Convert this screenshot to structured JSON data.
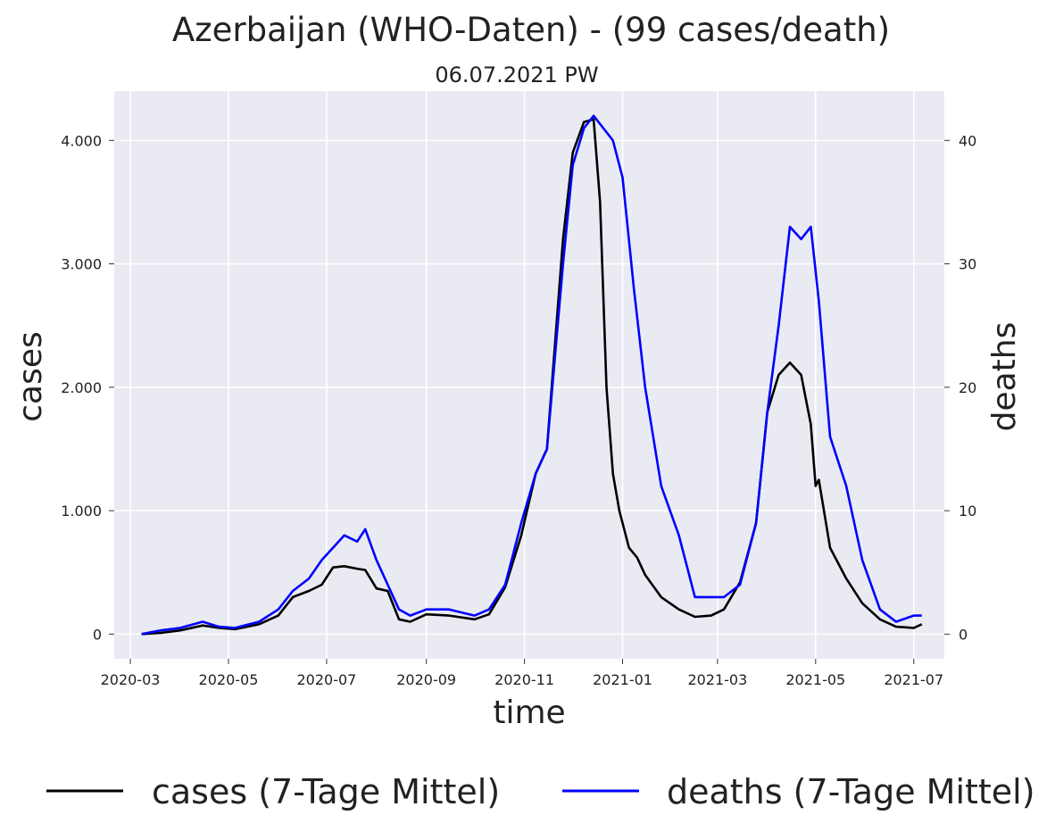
{
  "chart_data": {
    "type": "line",
    "title": "Azerbaijan (WHO-Daten) - (99 cases/death)",
    "subtitle": "06.07.2021 PW",
    "xlabel": "time",
    "ylabel": "cases",
    "y2label": "deaths",
    "x_ticks": [
      "2020-03",
      "2020-05",
      "2020-07",
      "2020-09",
      "2020-11",
      "2021-01",
      "2021-03",
      "2021-05",
      "2021-07"
    ],
    "x_range": [
      "2020-02-20",
      "2021-07-20"
    ],
    "y_ticks": [
      0,
      1000,
      2000,
      3000,
      4000
    ],
    "y_tick_labels": [
      "0",
      "1.000",
      "2.000",
      "3.000",
      "4.000"
    ],
    "ylim": [
      -200,
      4400
    ],
    "y2_ticks": [
      0,
      10,
      20,
      30,
      40
    ],
    "y2_tick_labels": [
      "0",
      "10",
      "20",
      "30",
      "40"
    ],
    "y2lim": [
      -2,
      44
    ],
    "grid": true,
    "legend_position": "bottom",
    "series": [
      {
        "name": "cases (7-Tage Mittel)",
        "axis": "left",
        "color": "#000000",
        "x": [
          "2020-03-08",
          "2020-03-20",
          "2020-04-01",
          "2020-04-15",
          "2020-04-25",
          "2020-05-05",
          "2020-05-20",
          "2020-06-01",
          "2020-06-10",
          "2020-06-20",
          "2020-06-28",
          "2020-07-05",
          "2020-07-12",
          "2020-07-20",
          "2020-07-25",
          "2020-08-01",
          "2020-08-08",
          "2020-08-15",
          "2020-08-22",
          "2020-09-01",
          "2020-09-15",
          "2020-10-01",
          "2020-10-10",
          "2020-10-20",
          "2020-10-30",
          "2020-11-08",
          "2020-11-15",
          "2020-11-25",
          "2020-12-01",
          "2020-12-08",
          "2020-12-14",
          "2020-12-18",
          "2020-12-22",
          "2020-12-26",
          "2020-12-30",
          "2021-01-05",
          "2021-01-10",
          "2021-01-15",
          "2021-01-25",
          "2021-02-05",
          "2021-02-15",
          "2021-02-25",
          "2021-03-05",
          "2021-03-15",
          "2021-03-25",
          "2021-04-01",
          "2021-04-08",
          "2021-04-15",
          "2021-04-22",
          "2021-04-28",
          "2021-05-01",
          "2021-05-03",
          "2021-05-10",
          "2021-05-20",
          "2021-05-30",
          "2021-06-10",
          "2021-06-20",
          "2021-07-01",
          "2021-07-06"
        ],
        "values": [
          0,
          10,
          30,
          70,
          50,
          40,
          80,
          150,
          300,
          350,
          400,
          540,
          550,
          530,
          520,
          370,
          350,
          120,
          100,
          160,
          150,
          120,
          160,
          380,
          800,
          1300,
          1500,
          3200,
          3900,
          4150,
          4170,
          3500,
          2000,
          1300,
          1000,
          700,
          620,
          480,
          300,
          200,
          140,
          150,
          200,
          420,
          900,
          1800,
          2100,
          2200,
          2100,
          1700,
          1200,
          1250,
          700,
          450,
          250,
          120,
          60,
          50,
          80
        ]
      },
      {
        "name": "deaths (7-Tage Mittel)",
        "axis": "right",
        "color": "#0000ff",
        "x": [
          "2020-03-08",
          "2020-03-20",
          "2020-04-01",
          "2020-04-15",
          "2020-04-25",
          "2020-05-05",
          "2020-05-20",
          "2020-06-01",
          "2020-06-10",
          "2020-06-20",
          "2020-06-28",
          "2020-07-05",
          "2020-07-12",
          "2020-07-20",
          "2020-07-25",
          "2020-08-01",
          "2020-08-08",
          "2020-08-15",
          "2020-08-22",
          "2020-09-01",
          "2020-09-15",
          "2020-10-01",
          "2020-10-10",
          "2020-10-20",
          "2020-10-30",
          "2020-11-08",
          "2020-11-15",
          "2020-11-25",
          "2020-12-01",
          "2020-12-08",
          "2020-12-14",
          "2020-12-20",
          "2020-12-26",
          "2021-01-01",
          "2021-01-08",
          "2021-01-15",
          "2021-01-25",
          "2021-02-05",
          "2021-02-15",
          "2021-02-25",
          "2021-03-05",
          "2021-03-15",
          "2021-03-25",
          "2021-04-01",
          "2021-04-08",
          "2021-04-15",
          "2021-04-22",
          "2021-04-28",
          "2021-05-03",
          "2021-05-10",
          "2021-05-20",
          "2021-05-30",
          "2021-06-10",
          "2021-06-20",
          "2021-07-01",
          "2021-07-06"
        ],
        "values": [
          0,
          0.3,
          0.5,
          1.0,
          0.6,
          0.5,
          1.0,
          2.0,
          3.5,
          4.5,
          6.0,
          7.0,
          8.0,
          7.5,
          8.5,
          6.0,
          4.0,
          2.0,
          1.5,
          2.0,
          2.0,
          1.5,
          2.0,
          4.0,
          9.0,
          13.0,
          15.0,
          30.0,
          38.0,
          41.0,
          42.0,
          41.0,
          40.0,
          37.0,
          28.0,
          20.0,
          12.0,
          8.0,
          3.0,
          3.0,
          3.0,
          4.0,
          9.0,
          18.0,
          25.0,
          33.0,
          32.0,
          33.0,
          27.0,
          16.0,
          12.0,
          6.0,
          2.0,
          1.0,
          1.5,
          1.5
        ]
      }
    ]
  }
}
